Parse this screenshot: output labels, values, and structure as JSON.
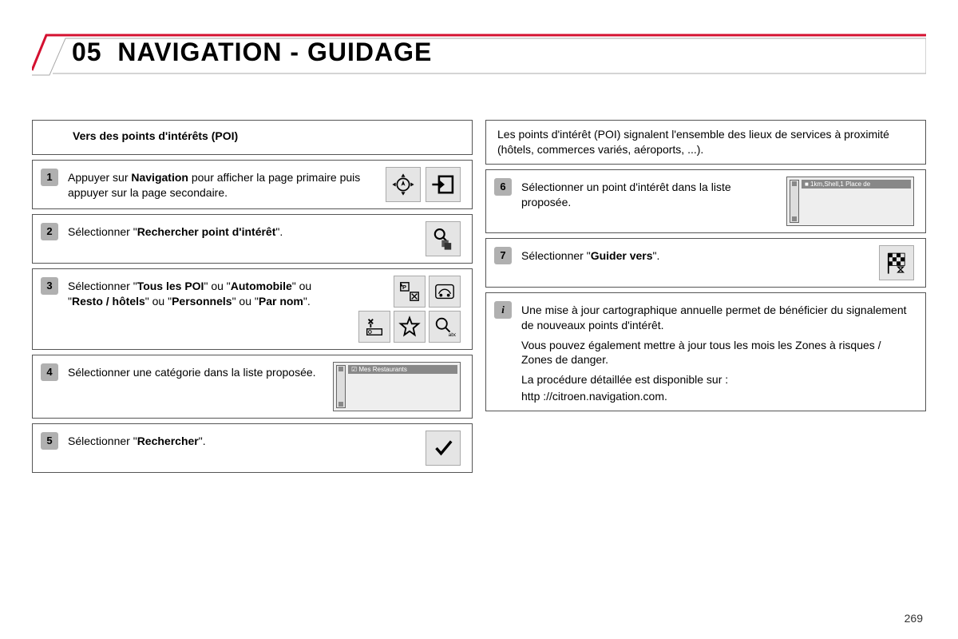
{
  "page_number": "269",
  "title": {
    "chapter": "05",
    "text": "NAVIGATION - GUIDAGE",
    "accent_color": "#d41030",
    "border_color": "#888888"
  },
  "left": {
    "header": "Vers des points d'intérêts (POI)",
    "steps": [
      {
        "num": "1",
        "html": "Appuyer sur <b>Navigation</b> pour afficher la page primaire puis appuyer sur la page secondaire.",
        "icons": "nav-pair"
      },
      {
        "num": "2",
        "html": "Sélectionner \"<b>Rechercher point d'intérêt</b>\".",
        "icons": "search-poi"
      },
      {
        "num": "3",
        "html": "Sélectionner \"<b>Tous les POI</b>\" ou \"<b>Automobile</b>\" ou \"<b>Resto / hôtels</b>\" ou \"<b>Personnels</b>\" ou \"<b>Par nom</b>\".",
        "icons": "poi-grid"
      },
      {
        "num": "4",
        "html": "Sélectionner une catégorie dans la liste proposée.",
        "icons": "mini-screen",
        "mini_label": "☑ Mes Restaurants"
      },
      {
        "num": "5",
        "html": "Sélectionner \"<b>Rechercher</b>\".",
        "icons": "check"
      }
    ]
  },
  "right": {
    "intro": "Les points d'intérêt (POI) signalent l'ensemble des lieux de services à proximité (hôtels, commerces variés, aéroports, ...).",
    "steps": [
      {
        "num": "6",
        "html": "Sélectionner un point d'intérêt dans la liste proposée.",
        "icons": "mini-screen",
        "mini_label": "■ 1km,Shell,1 Place de"
      },
      {
        "num": "7",
        "html": "Sélectionner \"<b>Guider vers</b>\".",
        "icons": "flag"
      }
    ],
    "info": {
      "marker": "i",
      "lines": [
        "Une mise à jour cartographique annuelle permet de bénéficier du signalement de nouveaux points d'intérêt.",
        "Vous pouvez également mettre à jour tous les mois les Zones à risques / Zones de danger.",
        "La procédure détaillée est disponible sur :",
        "http ://citroen.navigation.com."
      ]
    }
  }
}
